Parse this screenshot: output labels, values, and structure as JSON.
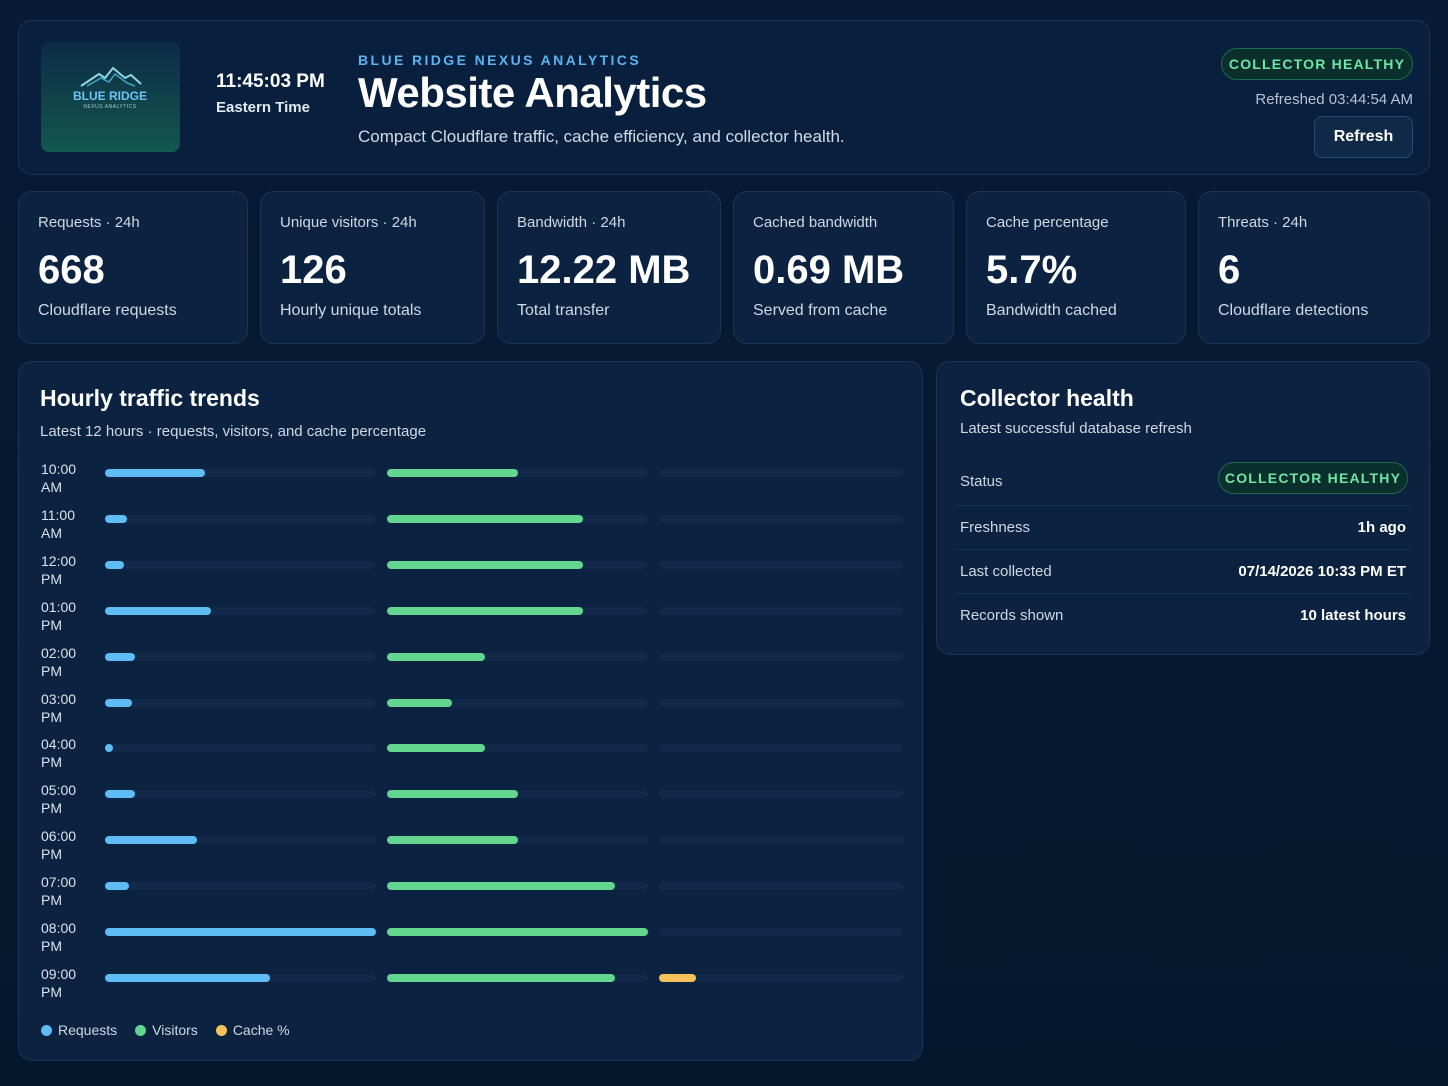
{
  "logo": {
    "line1": "BLUE RIDGE",
    "line2": "NEXUS ANALYTICS"
  },
  "header": {
    "time": "11:45:03 PM",
    "timezone": "Eastern Time",
    "eyebrow": "BLUE RIDGE NEXUS ANALYTICS",
    "title": "Website Analytics",
    "subtitle": "Compact Cloudflare traffic, cache efficiency, and collector health.",
    "status_badge": "COLLECTOR HEALTHY",
    "refreshed": "Refreshed 03:44:54 AM",
    "refresh_label": "Refresh"
  },
  "stats": [
    {
      "label": "Requests · 24h",
      "value": "668",
      "caption": "Cloudflare requests"
    },
    {
      "label": "Unique visitors · 24h",
      "value": "126",
      "caption": "Hourly unique totals"
    },
    {
      "label": "Bandwidth · 24h",
      "value": "12.22 MB",
      "caption": "Total transfer"
    },
    {
      "label": "Cached bandwidth",
      "value": "0.69 MB",
      "caption": "Served from cache"
    },
    {
      "label": "Cache percentage",
      "value": "5.7%",
      "caption": "Bandwidth cached"
    },
    {
      "label": "Threats · 24h",
      "value": "6",
      "caption": "Cloudflare detections"
    }
  ],
  "trends": {
    "title": "Hourly traffic trends",
    "subtitle": "Latest 12 hours · requests, visitors, and cache percentage",
    "legend": {
      "requests": "Requests",
      "visitors": "Visitors",
      "cache": "Cache %"
    },
    "colors": {
      "requests": "#5ebdf5",
      "visitors": "#62d58f",
      "cache": "#f7c25a"
    },
    "rows": [
      {
        "hour": "10:00",
        "ampm": "AM",
        "requests": 0.37,
        "visitors": 0.5,
        "cache": 0.0
      },
      {
        "hour": "11:00",
        "ampm": "AM",
        "requests": 0.08,
        "visitors": 0.75,
        "cache": 0.0
      },
      {
        "hour": "12:00",
        "ampm": "PM",
        "requests": 0.07,
        "visitors": 0.75,
        "cache": 0.0
      },
      {
        "hour": "01:00",
        "ampm": "PM",
        "requests": 0.39,
        "visitors": 0.75,
        "cache": 0.0
      },
      {
        "hour": "02:00",
        "ampm": "PM",
        "requests": 0.11,
        "visitors": 0.375,
        "cache": 0.0
      },
      {
        "hour": "03:00",
        "ampm": "PM",
        "requests": 0.1,
        "visitors": 0.25,
        "cache": 0.0
      },
      {
        "hour": "04:00",
        "ampm": "PM",
        "requests": 0.03,
        "visitors": 0.375,
        "cache": 0.0
      },
      {
        "hour": "05:00",
        "ampm": "PM",
        "requests": 0.11,
        "visitors": 0.5,
        "cache": 0.0
      },
      {
        "hour": "06:00",
        "ampm": "PM",
        "requests": 0.34,
        "visitors": 0.5,
        "cache": 0.0
      },
      {
        "hour": "07:00",
        "ampm": "PM",
        "requests": 0.09,
        "visitors": 0.875,
        "cache": 0.0
      },
      {
        "hour": "08:00",
        "ampm": "PM",
        "requests": 1.0,
        "visitors": 1.0,
        "cache": 0.0
      },
      {
        "hour": "09:00",
        "ampm": "PM",
        "requests": 0.61,
        "visitors": 0.875,
        "cache": 0.15
      }
    ]
  },
  "collector": {
    "title": "Collector health",
    "subtitle": "Latest successful database refresh",
    "status_label": "Status",
    "status_badge": "COLLECTOR HEALTHY",
    "freshness_label": "Freshness",
    "freshness_value": "1h ago",
    "last_collected_label": "Last collected",
    "last_collected_value": "07/14/2026 10:33 PM ET",
    "records_label": "Records shown",
    "records_value": "10 latest hours"
  }
}
